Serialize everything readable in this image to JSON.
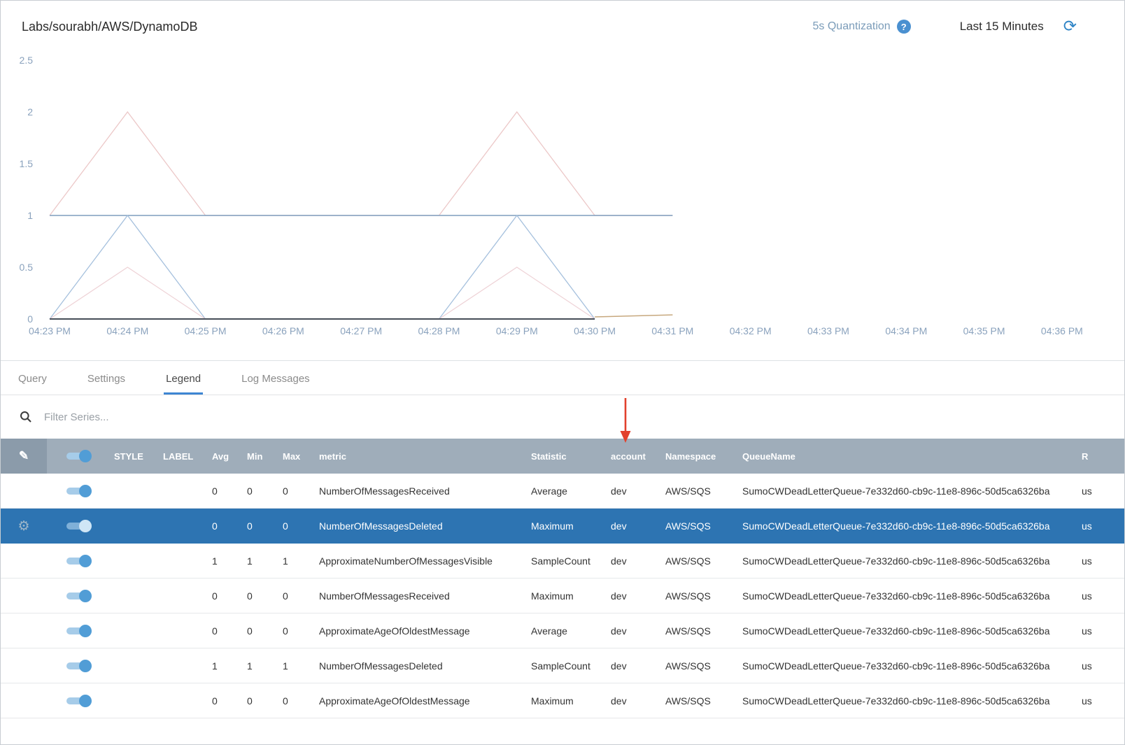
{
  "icons": {
    "help": "?",
    "refresh": "⟳",
    "pencil": "✎",
    "gear": "⚙"
  },
  "colors": {
    "accent": "#3e86d3",
    "selected_row": "#2d74b2",
    "table_header_bg": "#9fadba",
    "annotation_arrow": "#e2402c",
    "help_icon_bg": "#4a90d0"
  },
  "panel": {
    "title": "Labs/sourabh/AWS/DynamoDB",
    "quantization": "5s Quantization",
    "time_range": "Last 15 Minutes"
  },
  "tabs": [
    {
      "label": "Query",
      "active": false
    },
    {
      "label": "Settings",
      "active": false
    },
    {
      "label": "Legend",
      "active": true
    },
    {
      "label": "Log Messages",
      "active": false
    }
  ],
  "filter": {
    "placeholder": "Filter Series..."
  },
  "chart_data": {
    "type": "line",
    "title": "",
    "xlabel": "",
    "ylabel": "",
    "grid": false,
    "legend_position": "none",
    "ylim": [
      0,
      2.5
    ],
    "y_ticks": [
      0,
      0.5,
      1,
      1.5,
      2,
      2.5
    ],
    "x_ticks": [
      "04:23 PM",
      "04:24 PM",
      "04:25 PM",
      "04:26 PM",
      "04:27 PM",
      "04:28 PM",
      "04:29 PM",
      "04:30 PM",
      "04:31 PM",
      "04:32 PM",
      "04:33 PM",
      "04:34 PM",
      "04:35 PM",
      "04:36 PM"
    ],
    "x_unit_note": "x values are tick indices (0 = 04:23 PM)",
    "series": [
      {
        "name": "pink-upper",
        "color": "#ecc8c8",
        "width": 1.3,
        "points": [
          [
            0,
            1
          ],
          [
            1,
            2
          ],
          [
            2,
            1
          ],
          [
            5,
            1
          ],
          [
            6,
            2
          ],
          [
            7,
            1
          ],
          [
            8,
            1
          ]
        ]
      },
      {
        "name": "blue-flat",
        "color": "#7e9dbd",
        "width": 1.4,
        "points": [
          [
            0,
            1
          ],
          [
            8,
            1
          ]
        ]
      },
      {
        "name": "blue-spike",
        "color": "#a5c0dd",
        "width": 1.3,
        "points": [
          [
            0,
            0
          ],
          [
            1,
            1
          ],
          [
            2,
            0
          ],
          [
            5,
            0
          ],
          [
            6,
            1
          ],
          [
            7,
            0
          ]
        ]
      },
      {
        "name": "pink-lower",
        "color": "#eed2d6",
        "width": 1.2,
        "points": [
          [
            0,
            0
          ],
          [
            1,
            0.5
          ],
          [
            2,
            0
          ],
          [
            5,
            0
          ],
          [
            6,
            0.5
          ],
          [
            7,
            0
          ]
        ]
      },
      {
        "name": "baseline-dark",
        "color": "#474e58",
        "width": 2,
        "points": [
          [
            0,
            0
          ],
          [
            7,
            0
          ]
        ]
      },
      {
        "name": "tan-segment",
        "color": "#c7a87e",
        "width": 1.5,
        "points": [
          [
            7,
            0.02
          ],
          [
            8,
            0.04
          ]
        ]
      }
    ]
  },
  "table": {
    "headers": [
      "STYLE",
      "LABEL",
      "Avg",
      "Min",
      "Max",
      "metric",
      "Statistic",
      "account",
      "Namespace",
      "QueueName",
      "R"
    ],
    "rows": [
      {
        "selected": false,
        "avg": "0",
        "min": "0",
        "max": "0",
        "metric": "NumberOfMessagesReceived",
        "statistic": "Average",
        "account": "dev",
        "namespace": "AWS/SQS",
        "queue": "SumoCWDeadLetterQueue-7e332d60-cb9c-11e8-896c-50d5ca6326ba",
        "region": "us"
      },
      {
        "selected": true,
        "avg": "0",
        "min": "0",
        "max": "0",
        "metric": "NumberOfMessagesDeleted",
        "statistic": "Maximum",
        "account": "dev",
        "namespace": "AWS/SQS",
        "queue": "SumoCWDeadLetterQueue-7e332d60-cb9c-11e8-896c-50d5ca6326ba",
        "region": "us"
      },
      {
        "selected": false,
        "avg": "1",
        "min": "1",
        "max": "1",
        "metric": "ApproximateNumberOfMessagesVisible",
        "statistic": "SampleCount",
        "account": "dev",
        "namespace": "AWS/SQS",
        "queue": "SumoCWDeadLetterQueue-7e332d60-cb9c-11e8-896c-50d5ca6326ba",
        "region": "us"
      },
      {
        "selected": false,
        "avg": "0",
        "min": "0",
        "max": "0",
        "metric": "NumberOfMessagesReceived",
        "statistic": "Maximum",
        "account": "dev",
        "namespace": "AWS/SQS",
        "queue": "SumoCWDeadLetterQueue-7e332d60-cb9c-11e8-896c-50d5ca6326ba",
        "region": "us"
      },
      {
        "selected": false,
        "avg": "0",
        "min": "0",
        "max": "0",
        "metric": "ApproximateAgeOfOldestMessage",
        "statistic": "Average",
        "account": "dev",
        "namespace": "AWS/SQS",
        "queue": "SumoCWDeadLetterQueue-7e332d60-cb9c-11e8-896c-50d5ca6326ba",
        "region": "us"
      },
      {
        "selected": false,
        "avg": "1",
        "min": "1",
        "max": "1",
        "metric": "NumberOfMessagesDeleted",
        "statistic": "SampleCount",
        "account": "dev",
        "namespace": "AWS/SQS",
        "queue": "SumoCWDeadLetterQueue-7e332d60-cb9c-11e8-896c-50d5ca6326ba",
        "region": "us"
      },
      {
        "selected": false,
        "avg": "0",
        "min": "0",
        "max": "0",
        "metric": "ApproximateAgeOfOldestMessage",
        "statistic": "Maximum",
        "account": "dev",
        "namespace": "AWS/SQS",
        "queue": "SumoCWDeadLetterQueue-7e332d60-cb9c-11e8-896c-50d5ca6326ba",
        "region": "us"
      }
    ]
  }
}
